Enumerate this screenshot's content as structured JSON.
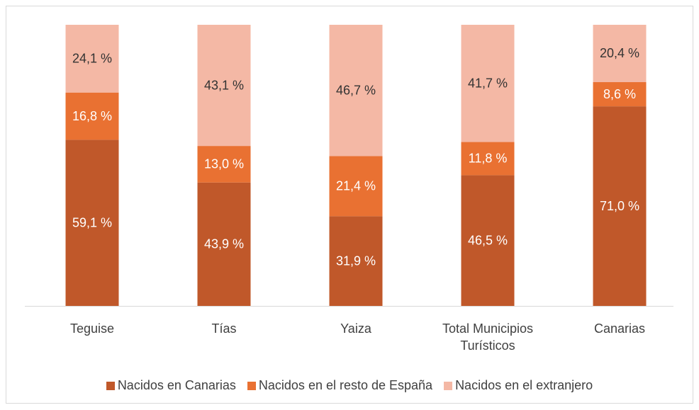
{
  "chart_data": {
    "type": "stacked_bar",
    "categories": [
      "Teguise",
      "Tías",
      "Yaiza",
      "Total Municipios Turísticos",
      "Canarias"
    ],
    "series": [
      {
        "name": "Nacidos en Canarias",
        "color": "#c0582a",
        "label_color": "#ffffff",
        "values": [
          59.1,
          43.9,
          31.9,
          46.5,
          71.0
        ],
        "value_labels": [
          "59,1 %",
          "43,9 %",
          "31,9 %",
          "46,5 %",
          "71,0 %"
        ]
      },
      {
        "name": "Nacidos en el resto de España",
        "color": "#e97132",
        "label_color": "#ffffff",
        "values": [
          16.8,
          13.0,
          21.4,
          11.8,
          8.6
        ],
        "value_labels": [
          "16,8 %",
          "13,0 %",
          "21,4 %",
          "11,8 %",
          "8,6 %"
        ]
      },
      {
        "name": "Nacidos en el extranjero",
        "color": "#f4b8a5",
        "label_color": "#333333",
        "values": [
          24.1,
          43.1,
          46.7,
          41.7,
          20.4
        ],
        "value_labels": [
          "24,1 %",
          "43,1 %",
          "46,7 %",
          "41,7 %",
          "20,4 %"
        ]
      }
    ],
    "ylim": [
      0,
      100
    ],
    "legend": "bottom"
  }
}
